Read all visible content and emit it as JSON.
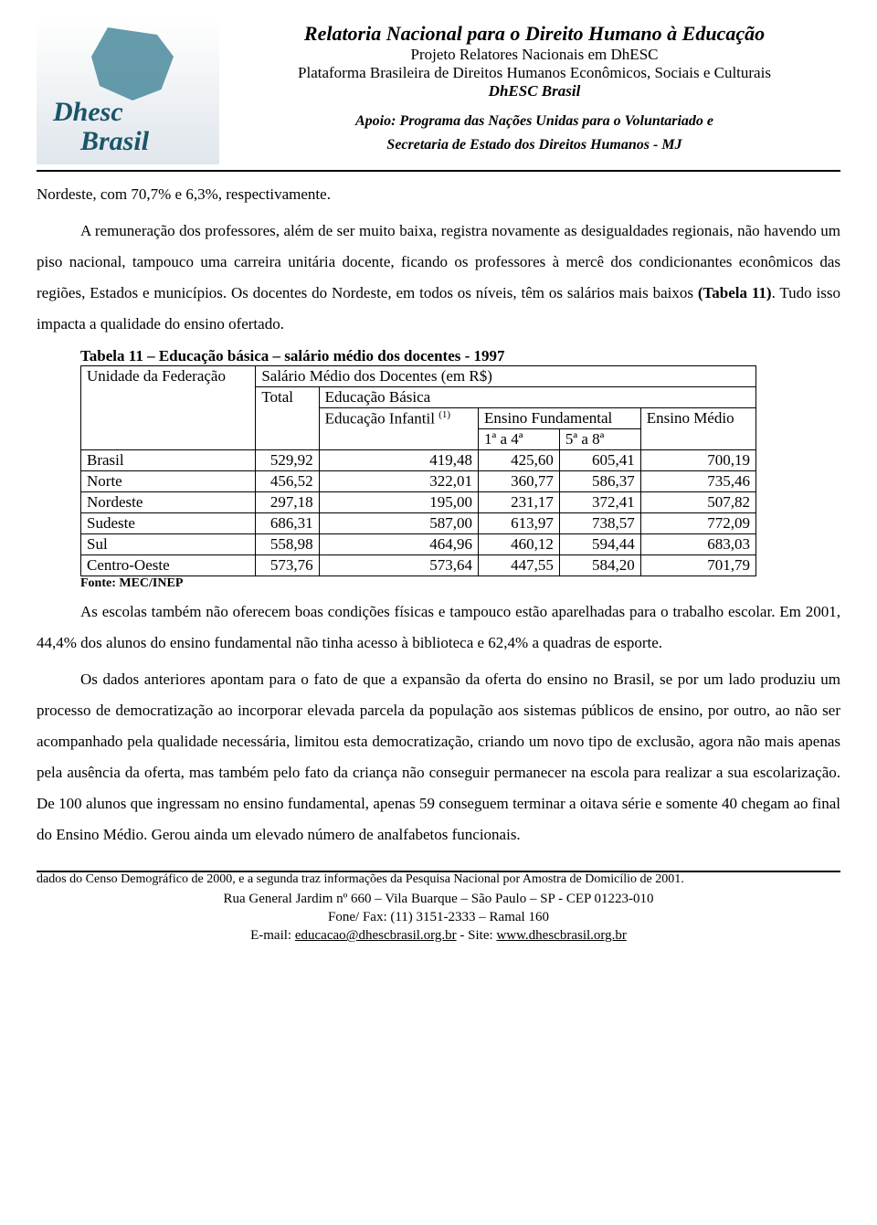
{
  "header": {
    "logo_word1": "Dhesc",
    "logo_word2": "Brasil",
    "title": "Relatoria Nacional para o Direito Humano à Educação",
    "sub1": "Projeto Relatores Nacionais em DhESC",
    "sub2": "Plataforma Brasileira de Direitos Humanos Econômicos, Sociais e Culturais",
    "sub3": "DhESC Brasil",
    "apoio1": "Apoio: Programa das Nações Unidas para o Voluntariado e",
    "apoio2": "Secretaria de Estado dos Direitos Humanos - MJ"
  },
  "para1": "Nordeste, com  70,7% e 6,3%, respectivamente.",
  "para2_a": "A remuneração dos professores, além de ser muito baixa, registra novamente as desigualdades regionais, não havendo um piso nacional, tampouco uma carreira unitária docente, ficando os professores à mercê dos condicionantes econômicos das regiões, Estados e municípios. Os docentes do Nordeste, em todos os níveis, têm os salários mais baixos ",
  "para2_bold": "(Tabela 11)",
  "para2_b": ". Tudo isso impacta a qualidade do ensino ofertado.",
  "table": {
    "caption": "Tabela 11 – Educação básica – salário médio dos docentes - 1997",
    "h_unidade": "Unidade da Federação",
    "h_salario": "Salário Médio dos Docentes (em R$)",
    "h_total": "Total",
    "h_basica": "Educação Básica",
    "h_infantil": "Educação Infantil ",
    "h_infantil_sup": "(1)",
    "h_fundamental": "Ensino Fundamental",
    "h_medio": "Ensino Médio",
    "h_1a4": "1ª a 4ª",
    "h_5a8": "5ª a 8ª",
    "rows": [
      {
        "label": "Brasil",
        "total": "529,92",
        "inf": "419,48",
        "f14": "425,60",
        "f58": "605,41",
        "med": "700,19"
      },
      {
        "label": "Norte",
        "total": "456,52",
        "inf": "322,01",
        "f14": "360,77",
        "f58": "586,37",
        "med": "735,46"
      },
      {
        "label": "Nordeste",
        "total": "297,18",
        "inf": "195,00",
        "f14": "231,17",
        "f58": "372,41",
        "med": "507,82"
      },
      {
        "label": "Sudeste",
        "total": "686,31",
        "inf": "587,00",
        "f14": "613,97",
        "f58": "738,57",
        "med": "772,09"
      },
      {
        "label": "Sul",
        "total": "558,98",
        "inf": "464,96",
        "f14": "460,12",
        "f58": "594,44",
        "med": "683,03"
      },
      {
        "label": "Centro-Oeste",
        "total": "573,76",
        "inf": "573,64",
        "f14": "447,55",
        "f58": "584,20",
        "med": "701,79"
      }
    ],
    "fonte": "Fonte: MEC/INEP"
  },
  "para3": "As escolas também não oferecem boas condições físicas e tampouco estão aparelhadas para o trabalho escolar. Em 2001, 44,4% dos alunos do ensino fundamental não tinha  acesso à biblioteca e 62,4% a quadras de esporte.",
  "para4": "Os dados anteriores apontam para o fato de que a expansão da oferta do ensino no Brasil, se por um lado produziu um processo de democratização ao incorporar elevada parcela da população aos sistemas públicos de ensino, por outro, ao não ser acompanhado pela qualidade necessária, limitou esta democratização, criando um novo tipo de exclusão, agora não mais apenas pela ausência da oferta, mas também pelo fato da criança não conseguir permanecer na escola para realizar a sua escolarização. De 100 alunos que ingressam no ensino fundamental, apenas 59 conseguem terminar a oitava série e somente 40 chegam ao final do Ensino Médio. Gerou ainda um elevado número de analfabetos funcionais.",
  "footnote": "dados do Censo Demográfico de 2000, e a segunda traz  informações da Pesquisa Nacional por Amostra de Domicílio de 2001.",
  "footer": {
    "line1": "Rua General Jardim nº 660 – Vila Buarque – São Paulo – SP - CEP 01223-010",
    "line2": "Fone/ Fax: (11) 3151-2333 – Ramal 160",
    "email_prefix": "E-mail: ",
    "email": "educacao@dhescbrasil.org.br",
    "site_prefix": " - Site: ",
    "site": "www.dhescbrasil.org.br"
  }
}
